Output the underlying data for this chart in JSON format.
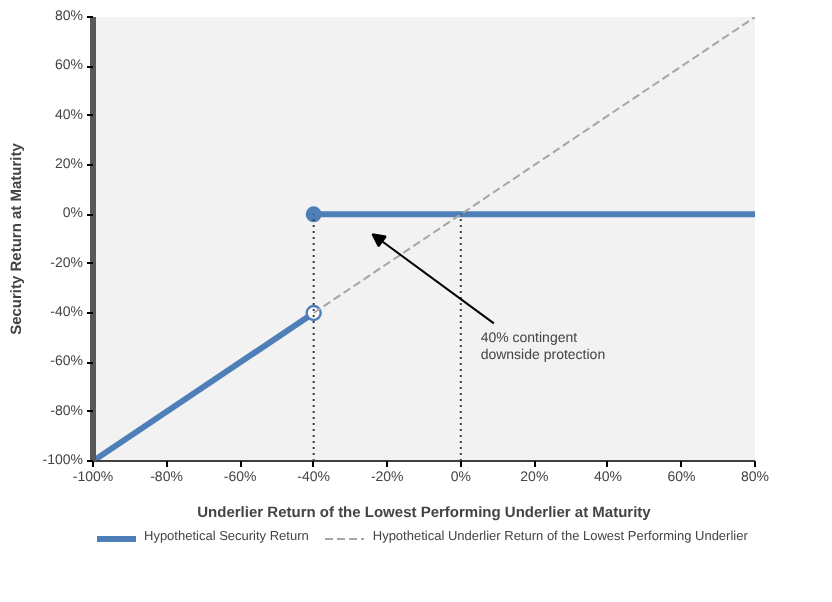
{
  "chart_data": {
    "type": "line",
    "xlabel": "Underlier Return of the Lowest Performing Underlier at Maturity",
    "ylabel": "Security Return at Maturity",
    "x": [
      -100,
      -40,
      -40,
      80
    ],
    "series": [
      {
        "name": "Hypothetical Security Return",
        "color": "#4f7fb8",
        "values": [
          -100,
          -40,
          0,
          0
        ],
        "line_style": "solid",
        "marker": "circle"
      },
      {
        "name": "Hypothetical Underlier Return of the Lowest Performing Underlier",
        "color": "#a6a6a6",
        "x": [
          -40,
          80
        ],
        "values": [
          -40,
          80
        ],
        "line_style": "dashed",
        "marker": "none"
      }
    ],
    "xlim": [
      -100,
      80
    ],
    "ylim": [
      -100,
      80
    ],
    "xticks": [
      {
        "value": -100,
        "label": "-100%"
      },
      {
        "value": -80,
        "label": "-80%"
      },
      {
        "value": -60,
        "label": "-60%"
      },
      {
        "value": -40,
        "label": "-40%"
      },
      {
        "value": -20,
        "label": "-20%"
      },
      {
        "value": 0,
        "label": "0%"
      },
      {
        "value": 20,
        "label": "20%"
      },
      {
        "value": 40,
        "label": "40%"
      },
      {
        "value": 60,
        "label": "60%"
      },
      {
        "value": 80,
        "label": "80%"
      }
    ],
    "yticks": [
      {
        "value": -100,
        "label": "-100%"
      },
      {
        "value": -80,
        "label": "-80%"
      },
      {
        "value": -60,
        "label": "-60%"
      },
      {
        "value": -40,
        "label": "-40%"
      },
      {
        "value": -20,
        "label": "-20%"
      },
      {
        "value": 0,
        "label": "0%"
      },
      {
        "value": 20,
        "label": "20%"
      },
      {
        "value": 40,
        "label": "40%"
      },
      {
        "value": 60,
        "label": "60%"
      },
      {
        "value": 80,
        "label": "80%"
      }
    ],
    "ref_lines": [
      {
        "axis": "x",
        "value": -40,
        "line_style": "dotted",
        "color": "#404040"
      },
      {
        "axis": "x",
        "value": 0,
        "line_style": "dotted",
        "color": "#404040"
      }
    ],
    "annotations": [
      "40% contingent\ndownside protection"
    ],
    "grid": false,
    "legend": "bottom"
  }
}
